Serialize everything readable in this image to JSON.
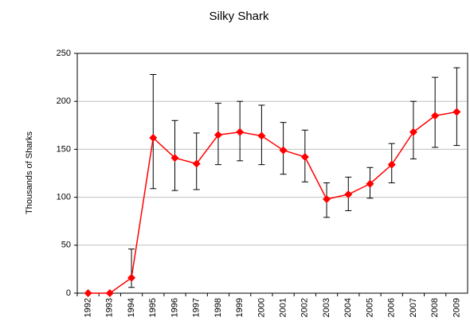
{
  "chart_data": {
    "type": "line",
    "title": "Silky Shark",
    "y_label": "Thousands of Sharks",
    "categories": [
      "1992",
      "1993",
      "1994",
      "1995",
      "1996",
      "1997",
      "1998",
      "1999",
      "2000",
      "2001",
      "2002",
      "2003",
      "2004",
      "2005",
      "2006",
      "2007",
      "2008",
      "2009"
    ],
    "values": [
      0,
      0,
      16,
      162,
      141,
      135,
      165,
      168,
      164,
      149,
      142,
      98,
      103,
      114,
      134,
      168,
      185,
      189
    ],
    "lower": [
      0,
      0,
      6,
      109,
      107,
      108,
      134,
      138,
      134,
      124,
      116,
      79,
      86,
      99,
      115,
      140,
      152,
      154
    ],
    "upper": [
      0,
      0,
      46,
      228,
      180,
      167,
      198,
      200,
      196,
      178,
      170,
      115,
      121,
      131,
      156,
      200,
      225,
      235
    ],
    "color": "#ff0000",
    "error_color": "#000000",
    "ylim": [
      0,
      250
    ],
    "yticks": [
      0,
      50,
      100,
      150,
      200,
      250
    ],
    "grid": true
  }
}
